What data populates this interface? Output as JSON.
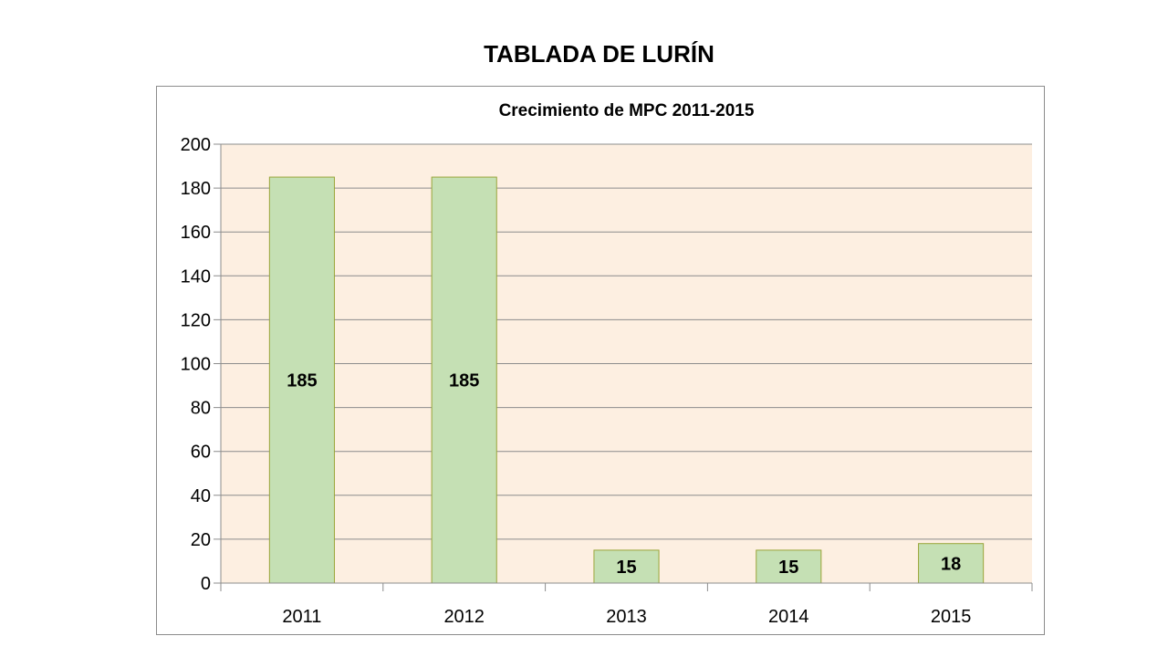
{
  "page": {
    "title": "TABLADA DE LURÍN"
  },
  "colors": {
    "plot_background": "#fdefe1",
    "bar_fill": "#c5e0b4",
    "bar_stroke": "#9aa53a",
    "gridline": "#8c8c8c",
    "frame_border": "#8c8c8c"
  },
  "chart_data": {
    "type": "bar",
    "title": "Crecimiento de MPC 2011-2015",
    "categories": [
      "2011",
      "2012",
      "2013",
      "2014",
      "2015"
    ],
    "values": [
      185,
      185,
      15,
      15,
      18
    ],
    "data_labels": [
      "185",
      "185",
      "15",
      "15",
      "18"
    ],
    "xlabel": "",
    "ylabel": "",
    "ylim": [
      0,
      200
    ],
    "yticks": [
      0,
      20,
      40,
      60,
      80,
      100,
      120,
      140,
      160,
      180,
      200
    ],
    "grid": true,
    "legend": "none"
  }
}
